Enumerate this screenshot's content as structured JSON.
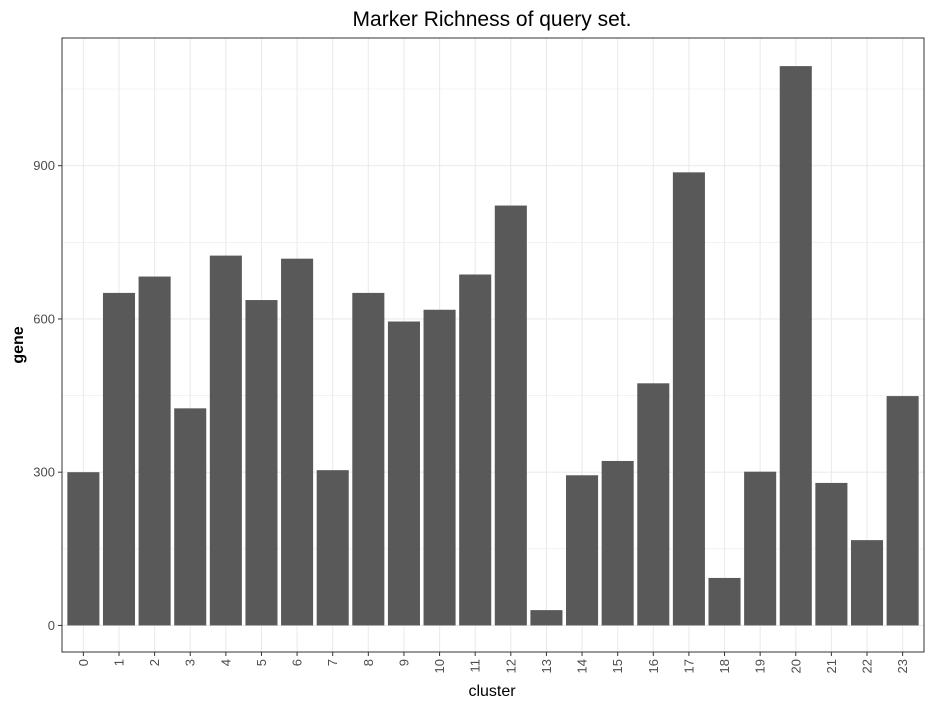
{
  "chart_data": {
    "type": "bar",
    "title": "Marker Richness of query set.",
    "xlabel": "cluster",
    "ylabel": "gene",
    "categories": [
      "0",
      "1",
      "2",
      "3",
      "4",
      "5",
      "6",
      "7",
      "8",
      "9",
      "10",
      "11",
      "12",
      "13",
      "14",
      "15",
      "16",
      "17",
      "18",
      "19",
      "20",
      "21",
      "22",
      "23"
    ],
    "values": [
      300,
      651,
      683,
      425,
      724,
      637,
      718,
      304,
      651,
      595,
      618,
      687,
      822,
      30,
      294,
      322,
      474,
      887,
      93,
      301,
      1095,
      279,
      167,
      449
    ],
    "ylim": [
      -52,
      1150
    ],
    "yticks": [
      0,
      300,
      600,
      900
    ],
    "grid": true,
    "theme": "bw",
    "bar_color": "#595959",
    "grid_color": "#ebebeb",
    "panel_border_color": "#333333",
    "x_tick_rotation": "vertical"
  }
}
